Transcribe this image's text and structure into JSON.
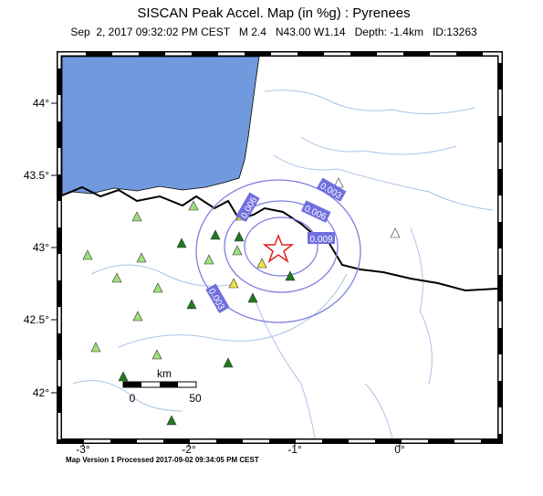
{
  "header": {
    "title": "SISCAN Peak Accel. Map (in %g) : Pyrenees",
    "subtitle": "Sep  2, 2017 09:32:02 PM CEST   M 2.4   N43.00 W1.14   Depth: -1.4km   ID:13263"
  },
  "map": {
    "lon_ticks": [
      "-3°",
      "-2°",
      "-1°",
      "0°"
    ],
    "lat_ticks": [
      "44°",
      "43.5°",
      "43°",
      "42.5°",
      "42°"
    ],
    "contour_labels": [
      "0.003",
      "0.006",
      "0.009",
      "0.006",
      "0.003"
    ],
    "scale": {
      "unit": "km",
      "start": "0",
      "end": "50"
    }
  },
  "footer": "Map Version 1 Processed 2017-09-02 09:34:05 PM CEST"
}
